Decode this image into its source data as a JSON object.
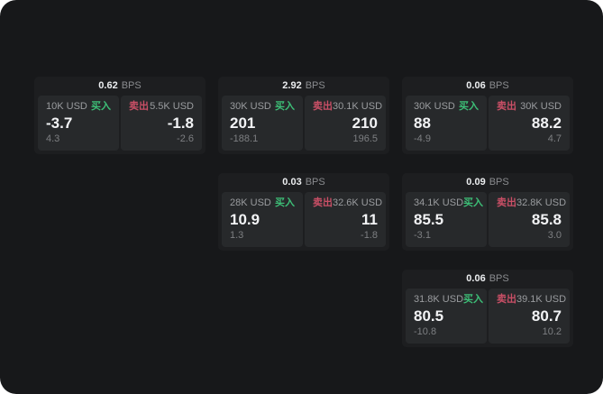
{
  "labels": {
    "bps": "BPS",
    "buy": "买入",
    "sell": "卖出"
  },
  "colors": {
    "page_bg": "#17181a",
    "card_bg": "#1d1e20",
    "panel_bg": "#27292b",
    "buy": "#3dbf77",
    "sell": "#c94f66"
  },
  "cards": [
    {
      "bps": "0.62",
      "buy": {
        "amount": "10K USD",
        "value": "-3.7",
        "sub": "4.3"
      },
      "sell": {
        "amount": "5.5K USD",
        "value": "-1.8",
        "sub": "-2.6"
      }
    },
    {
      "bps": "2.92",
      "buy": {
        "amount": "30K USD",
        "value": "201",
        "sub": "-188.1"
      },
      "sell": {
        "amount": "30.1K USD",
        "value": "210",
        "sub": "196.5"
      }
    },
    {
      "bps": "0.06",
      "buy": {
        "amount": "30K USD",
        "value": "88",
        "sub": "-4.9"
      },
      "sell": {
        "amount": "30K USD",
        "value": "88.2",
        "sub": "4.7"
      }
    },
    {
      "bps": "0.03",
      "buy": {
        "amount": "28K USD",
        "value": "10.9",
        "sub": "1.3"
      },
      "sell": {
        "amount": "32.6K USD",
        "value": "11",
        "sub": "-1.8"
      }
    },
    {
      "bps": "0.09",
      "buy": {
        "amount": "34.1K USD",
        "value": "85.5",
        "sub": "-3.1"
      },
      "sell": {
        "amount": "32.8K USD",
        "value": "85.8",
        "sub": "3.0"
      }
    },
    {
      "bps": "0.06",
      "buy": {
        "amount": "31.8K USD",
        "value": "80.5",
        "sub": "-10.8"
      },
      "sell": {
        "amount": "39.1K USD",
        "value": "80.7",
        "sub": "10.2"
      }
    }
  ]
}
